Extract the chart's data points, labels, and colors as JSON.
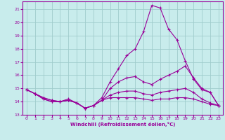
{
  "xlabel": "Windchill (Refroidissement éolien,°C)",
  "background_color": "#c8ecec",
  "grid_color": "#a0cccc",
  "line_color": "#990099",
  "xlim_min": -0.5,
  "xlim_max": 23.5,
  "ylim_min": 13.0,
  "ylim_max": 21.6,
  "yticks": [
    13,
    14,
    15,
    16,
    17,
    18,
    19,
    20,
    21
  ],
  "xticks": [
    0,
    1,
    2,
    3,
    4,
    5,
    6,
    7,
    8,
    9,
    10,
    11,
    12,
    13,
    14,
    15,
    16,
    17,
    18,
    19,
    20,
    21,
    22,
    23
  ],
  "line1_y": [
    14.9,
    14.6,
    14.2,
    14.0,
    14.0,
    14.2,
    13.9,
    13.5,
    13.7,
    14.3,
    15.5,
    16.5,
    17.5,
    18.0,
    19.3,
    21.3,
    21.1,
    19.5,
    18.7,
    17.1,
    15.7,
    14.9,
    14.7,
    13.7
  ],
  "line2_y": [
    14.9,
    14.6,
    14.2,
    14.0,
    14.0,
    14.1,
    13.9,
    13.5,
    13.7,
    14.1,
    15.0,
    15.5,
    15.8,
    15.9,
    15.5,
    15.3,
    15.7,
    16.0,
    16.3,
    16.7,
    15.8,
    15.0,
    14.7,
    13.7
  ],
  "line3_y": [
    14.9,
    14.6,
    14.3,
    14.1,
    14.0,
    14.1,
    13.9,
    13.5,
    13.7,
    14.1,
    14.5,
    14.7,
    14.8,
    14.8,
    14.6,
    14.5,
    14.7,
    14.8,
    14.9,
    15.0,
    14.7,
    14.2,
    13.9,
    13.7
  ],
  "line4_y": [
    14.9,
    14.6,
    14.3,
    14.1,
    14.0,
    14.1,
    13.9,
    13.5,
    13.7,
    14.1,
    14.3,
    14.3,
    14.3,
    14.3,
    14.2,
    14.1,
    14.2,
    14.2,
    14.3,
    14.3,
    14.2,
    14.0,
    13.8,
    13.7
  ]
}
